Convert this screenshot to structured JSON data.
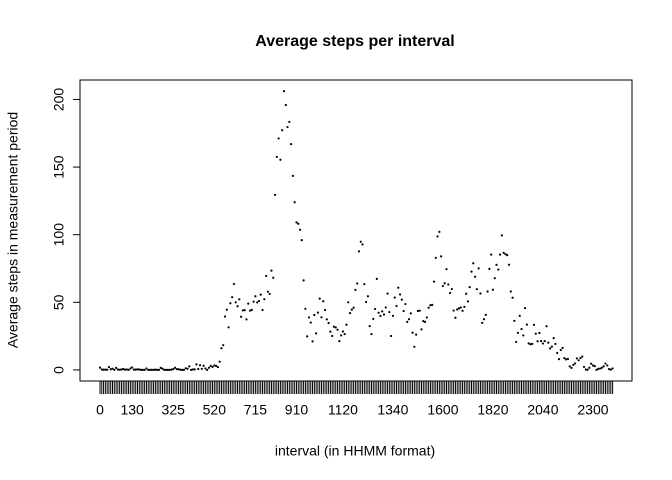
{
  "chart_data": {
    "type": "scatter",
    "title": "Average steps per interval",
    "x_label": "interval (in HHMM format)",
    "y_label": "Average steps in measurement period",
    "categories": [
      "0",
      null,
      null,
      null,
      null,
      null,
      null,
      null,
      null,
      null,
      null,
      null,
      null,
      null,
      null,
      null,
      null,
      null,
      "130",
      null,
      null,
      null,
      null,
      null,
      null,
      null,
      null,
      null,
      null,
      null,
      null,
      null,
      null,
      null,
      null,
      null,
      null,
      null,
      null,
      null,
      null,
      "325",
      null,
      null,
      null,
      null,
      null,
      null,
      null,
      null,
      null,
      null,
      null,
      null,
      null,
      null,
      null,
      null,
      null,
      null,
      null,
      null,
      null,
      null,
      "520",
      null,
      null,
      null,
      null,
      null,
      null,
      null,
      null,
      null,
      null,
      null,
      null,
      null,
      null,
      null,
      null,
      null,
      null,
      null,
      null,
      null,
      null,
      "715",
      null,
      null,
      null,
      null,
      null,
      null,
      null,
      null,
      null,
      null,
      null,
      null,
      null,
      null,
      null,
      null,
      null,
      null,
      null,
      null,
      null,
      null,
      "910",
      null,
      null,
      null,
      null,
      null,
      null,
      null,
      null,
      null,
      null,
      null,
      null,
      null,
      null,
      null,
      null,
      null,
      null,
      null,
      null,
      null,
      null,
      null,
      null,
      null,
      "1120",
      null,
      null,
      null,
      null,
      null,
      null,
      null,
      null,
      null,
      null,
      null,
      null,
      null,
      null,
      null,
      null,
      null,
      null,
      null,
      null,
      null,
      null,
      null,
      null,
      null,
      null,
      null,
      "1340",
      null,
      null,
      null,
      null,
      null,
      null,
      null,
      null,
      null,
      null,
      null,
      null,
      null,
      null,
      null,
      null,
      null,
      null,
      null,
      null,
      null,
      null,
      null,
      null,
      null,
      null,
      null,
      "1600",
      null,
      null,
      null,
      null,
      null,
      null,
      null,
      null,
      null,
      null,
      null,
      null,
      null,
      null,
      null,
      null,
      null,
      null,
      null,
      null,
      null,
      null,
      null,
      null,
      null,
      null,
      null,
      "1820",
      null,
      null,
      null,
      null,
      null,
      null,
      null,
      null,
      null,
      null,
      null,
      null,
      null,
      null,
      null,
      null,
      null,
      null,
      null,
      null,
      null,
      null,
      null,
      null,
      null,
      null,
      null,
      "2040",
      null,
      null,
      null,
      null,
      null,
      null,
      null,
      null,
      null,
      null,
      null,
      null,
      null,
      null,
      null,
      null,
      null,
      null,
      null,
      null,
      null,
      null,
      null,
      null,
      null,
      null,
      null,
      "2300",
      null,
      null,
      null,
      null,
      null,
      null,
      null,
      null,
      null,
      null,
      null
    ],
    "values": [
      1.7,
      0.3,
      0.1,
      0.2,
      0.1,
      2.1,
      0.5,
      0.9,
      0,
      1.5,
      0.3,
      0.1,
      0.3,
      0.7,
      0.2,
      0.3,
      0,
      1.1,
      1.8,
      0.2,
      0.2,
      0.4,
      0.3,
      0,
      0,
      0,
      1.1,
      0,
      0,
      0.1,
      0,
      0.2,
      0,
      0,
      1.5,
      0.9,
      0,
      0,
      0,
      0,
      0.2,
      0.6,
      1.6,
      0.6,
      0.5,
      0.1,
      0,
      0,
      1.2,
      0.9,
      2.6,
      0,
      0.3,
      0.4,
      4.1,
      0.7,
      3.5,
      0.8,
      3.1,
      1.1,
      0,
      1.6,
      3.0,
      2.2,
      3.3,
      3.0,
      2.1,
      6.1,
      16.0,
      18.3,
      39.5,
      44.5,
      31.5,
      49.3,
      53.8,
      63.5,
      50.0,
      47.1,
      52.2,
      39.3,
      44.0,
      44.2,
      37.4,
      49.0,
      43.8,
      44.4,
      50.5,
      54.5,
      49.9,
      51.0,
      55.7,
      44.3,
      52.3,
      69.5,
      57.8,
      56.2,
      73.4,
      68.2,
      129.4,
      157.5,
      171.2,
      155.4,
      177.3,
      206.2,
      195.9,
      179.6,
      183.4,
      167.0,
      143.5,
      124.0,
      109.1,
      108.1,
      103.7,
      96.0,
      66.2,
      45.2,
      24.8,
      38.8,
      35.0,
      21.1,
      40.6,
      27.0,
      42.4,
      52.7,
      38.9,
      50.8,
      44.3,
      37.4,
      34.7,
      28.3,
      25.1,
      31.9,
      31.4,
      29.7,
      21.3,
      25.5,
      28.4,
      26.5,
      33.4,
      50.0,
      42.0,
      44.6,
      46.0,
      59.2,
      63.9,
      87.7,
      94.8,
      92.8,
      63.4,
      50.2,
      54.5,
      32.4,
      26.5,
      37.7,
      45.1,
      67.3,
      42.3,
      39.9,
      43.3,
      41.0,
      46.2,
      56.4,
      42.8,
      25.1,
      40.0,
      53.5,
      47.3,
      60.8,
      55.8,
      52.0,
      43.6,
      48.7,
      35.5,
      37.5,
      41.8,
      27.5,
      17.1,
      26.1,
      43.6,
      43.8,
      30.0,
      36.1,
      35.5,
      38.8,
      46.0,
      47.8,
      48.1,
      65.3,
      82.9,
      98.7,
      102.1,
      84.0,
      62.1,
      64.1,
      74.5,
      63.2,
      56.9,
      59.8,
      43.9,
      38.6,
      44.7,
      45.5,
      46.2,
      43.7,
      46.6,
      56.3,
      50.7,
      61.2,
      72.7,
      78.9,
      68.9,
      59.7,
      75.1,
      56.5,
      34.8,
      37.5,
      40.7,
      58.0,
      74.7,
      85.3,
      59.3,
      67.8,
      77.7,
      74.2,
      85.3,
      99.5,
      86.6,
      85.6,
      84.9,
      77.8,
      58.0,
      53.4,
      36.3,
      20.7,
      27.4,
      40.0,
      30.2,
      25.5,
      45.7,
      33.5,
      19.6,
      19.0,
      19.3,
      33.3,
      26.8,
      21.2,
      27.3,
      21.3,
      19.5,
      21.3,
      32.3,
      20.2,
      15.9,
      17.2,
      23.5,
      19.2,
      12.5,
      8.0,
      14.7,
      16.3,
      8.7,
      7.8,
      8.1,
      2.6,
      1.5,
      3.7,
      4.8,
      8.5,
      7.1,
      8.7,
      9.8,
      2.2,
      0.3,
      0.1,
      1.6,
      4.6,
      3.3,
      2.8,
      0,
      0.8,
      1.0,
      1.6,
      2.6,
      4.7,
      3.3,
      0.6,
      0.2,
      1.1
    ],
    "color": "#000000",
    "ylim": [
      -8.2,
      214.4
    ],
    "yticks": [
      0,
      50,
      100,
      150,
      200
    ]
  }
}
